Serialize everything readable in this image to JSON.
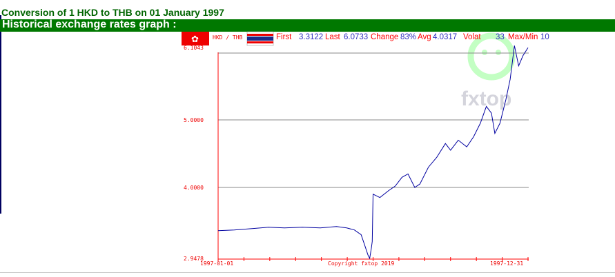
{
  "header": {
    "title": "Conversion of 1 HKD to THB on 01 January 1997",
    "band": "Historical exchange rates graph :"
  },
  "stats": {
    "pair": "HKD / THB",
    "first_label": "First",
    "first": "3.3122",
    "last_label": "Last",
    "last": "6.0733",
    "change_label": "Change",
    "change": "83%",
    "avg_label": "Avg",
    "avg": "4.0317",
    "volat_label": "Volat",
    "volat": "33",
    "maxmin_label": "Max/Min",
    "maxmin": "10"
  },
  "flags": {
    "left": "hong-kong-flag-icon",
    "right": "thailand-flag-icon"
  },
  "watermark": "fxtop",
  "colors": {
    "line": "#0000a0",
    "axis": "#ff0000",
    "label_red": "#ff0000",
    "label_blue": "#3030c0",
    "band": "#007800"
  },
  "chart_data": {
    "type": "line",
    "xlim": [
      "1997-01-01",
      "1997-12-31"
    ],
    "ylim": [
      2.9478,
      6.1043
    ],
    "yticks": [
      "6.1043",
      "5.0000",
      "4.0000",
      "2.9478"
    ],
    "xticks": [
      "1997-01-01",
      "1997-12-31"
    ],
    "copyright": "Copyright fxtop 2019",
    "grid": true,
    "series": [
      {
        "points": [
          [
            "1997-01-01",
            3.36
          ],
          [
            "1997-01-20",
            3.37
          ],
          [
            "1997-02-10",
            3.39
          ],
          [
            "1997-03-01",
            3.41
          ],
          [
            "1997-03-20",
            3.4
          ],
          [
            "1997-04-10",
            3.41
          ],
          [
            "1997-05-01",
            3.4
          ],
          [
            "1997-05-20",
            3.42
          ],
          [
            "1997-06-01",
            3.4
          ],
          [
            "1997-06-10",
            3.37
          ],
          [
            "1997-06-18",
            3.3
          ],
          [
            "1997-06-22",
            3.15
          ],
          [
            "1997-06-26",
            3.0
          ],
          [
            "1997-06-28",
            2.95
          ],
          [
            "1997-06-30",
            3.1
          ],
          [
            "1997-07-01",
            3.2
          ],
          [
            "1997-07-02",
            3.9
          ],
          [
            "1997-07-10",
            3.85
          ],
          [
            "1997-07-20",
            3.95
          ],
          [
            "1997-07-28",
            4.02
          ],
          [
            "1997-08-05",
            4.15
          ],
          [
            "1997-08-12",
            4.2
          ],
          [
            "1997-08-20",
            4.0
          ],
          [
            "1997-08-26",
            4.05
          ],
          [
            "1997-09-05",
            4.3
          ],
          [
            "1997-09-15",
            4.45
          ],
          [
            "1997-09-25",
            4.65
          ],
          [
            "1997-10-01",
            4.55
          ],
          [
            "1997-10-10",
            4.7
          ],
          [
            "1997-10-20",
            4.6
          ],
          [
            "1997-10-28",
            4.75
          ],
          [
            "1997-11-05",
            4.95
          ],
          [
            "1997-11-12",
            5.2
          ],
          [
            "1997-11-18",
            5.1
          ],
          [
            "1997-11-22",
            4.8
          ],
          [
            "1997-11-28",
            4.95
          ],
          [
            "1997-12-05",
            5.3
          ],
          [
            "1997-12-10",
            5.6
          ],
          [
            "1997-12-15",
            6.1
          ],
          [
            "1997-12-20",
            5.8
          ],
          [
            "1997-12-25",
            5.95
          ],
          [
            "1997-12-31",
            6.07
          ]
        ]
      }
    ]
  }
}
